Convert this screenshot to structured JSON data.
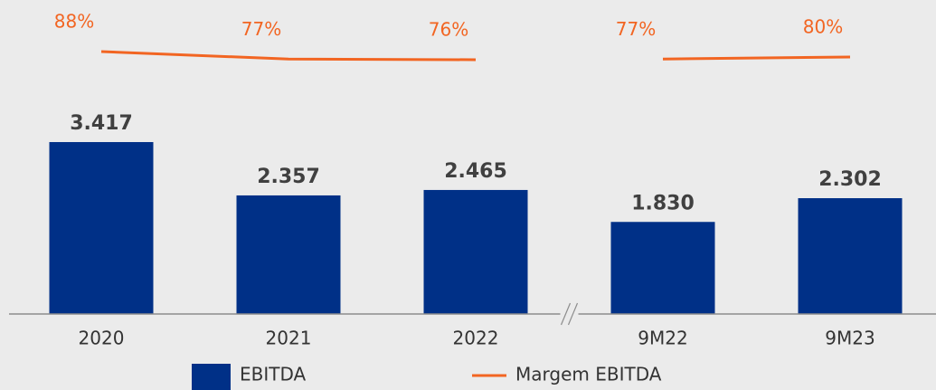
{
  "chart_data": {
    "type": "bar",
    "categories": [
      "2020",
      "2021",
      "2022",
      "9M22",
      "9M23"
    ],
    "axis_break_after": 2,
    "ylim": [
      0,
      5000
    ],
    "y2lim": [
      0,
      100
    ],
    "legend": "bottom",
    "series": [
      {
        "name": "EBITDA",
        "type": "bar",
        "color": "#003087",
        "values": [
          3417,
          2357,
          2465,
          1830,
          2302
        ],
        "value_labels": [
          "3.417",
          "2.357",
          "2.465",
          "1.830",
          "2.302"
        ]
      },
      {
        "name": "Margem EBITDA",
        "type": "line",
        "axis": "y2",
        "color": "#f26522",
        "values": [
          88,
          77,
          76,
          77,
          80
        ],
        "value_labels": [
          "88%",
          "77%",
          "76%",
          "77%",
          "80%"
        ]
      }
    ]
  }
}
